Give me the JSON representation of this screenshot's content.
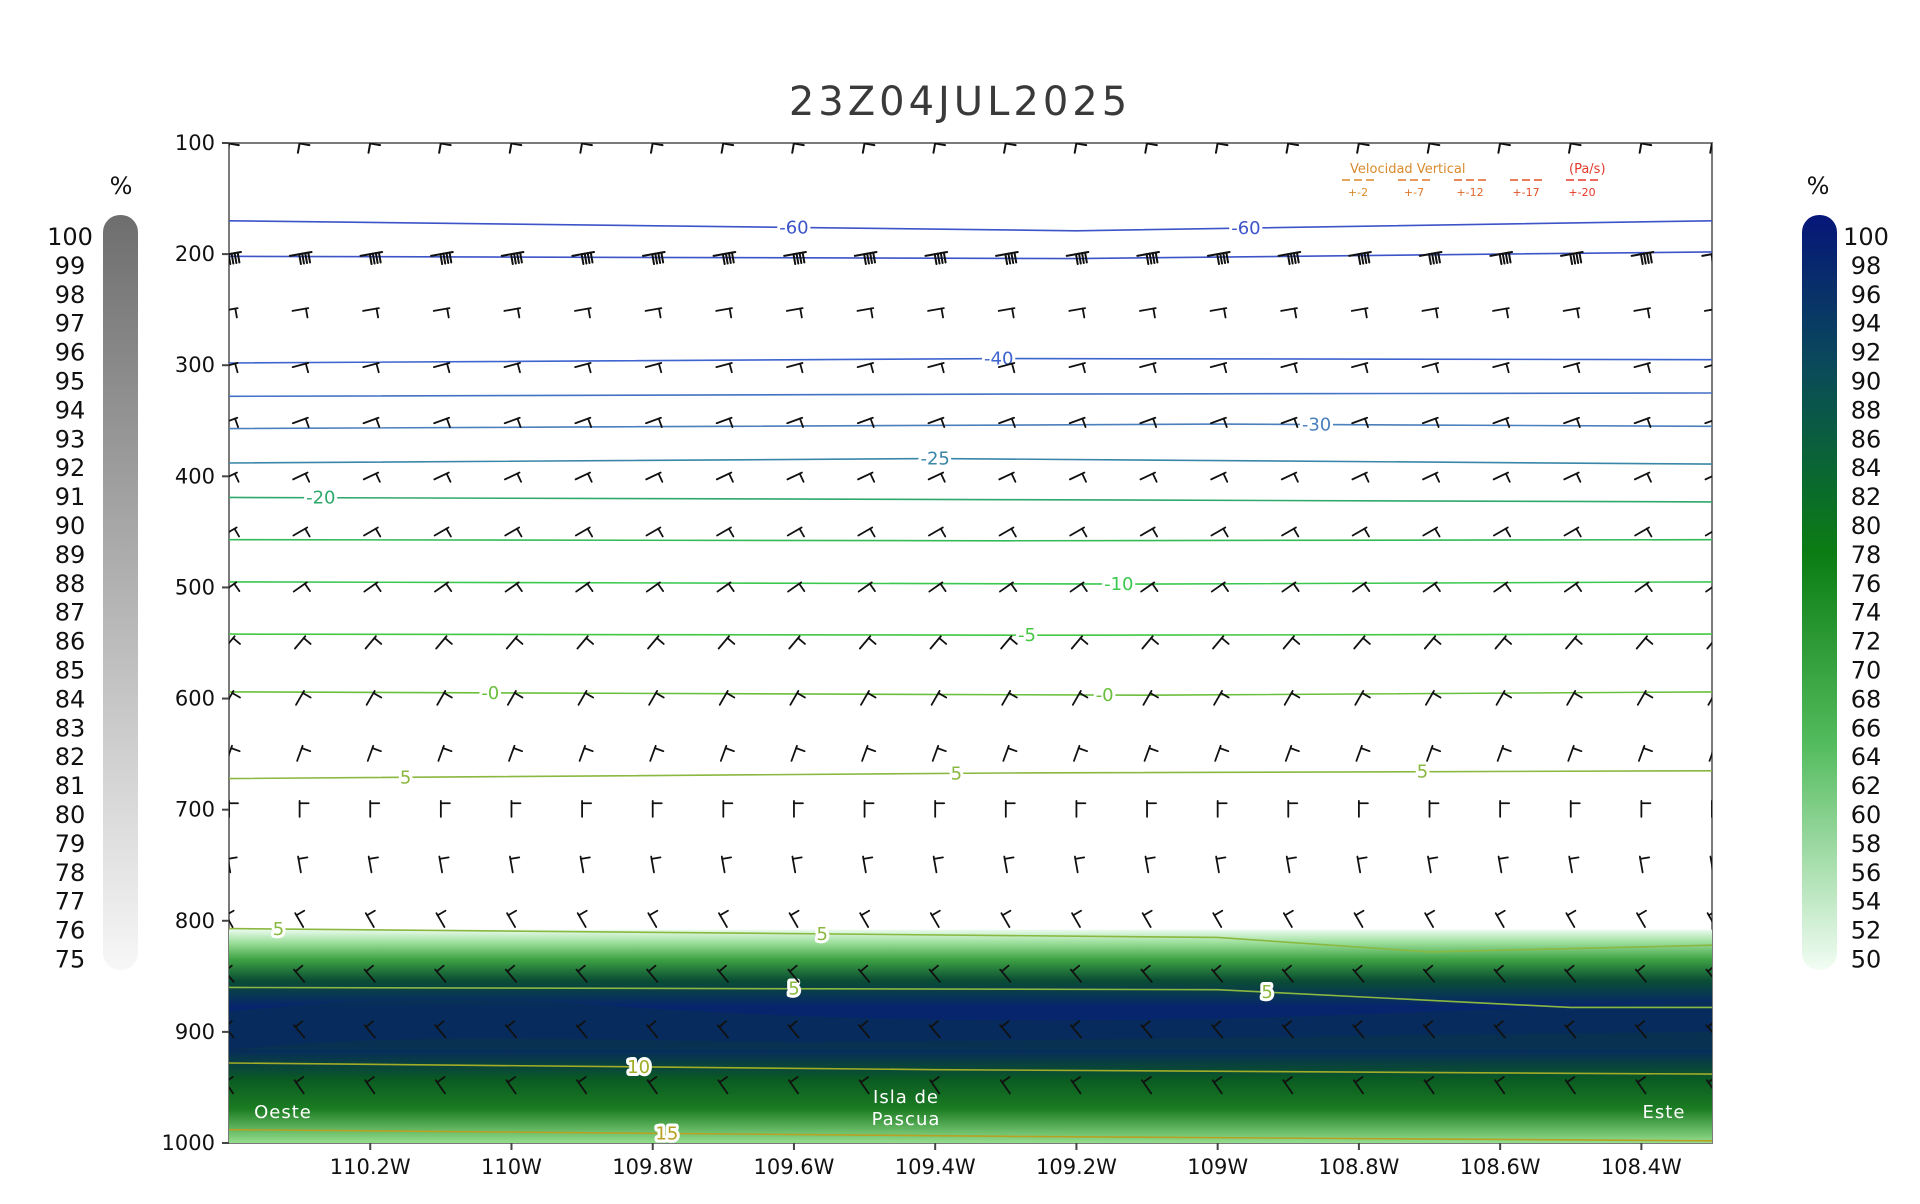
{
  "page": {
    "title": "23Z04JUL2025"
  },
  "chart_data": {
    "type": "heatmap",
    "title": "23Z04JUL2025",
    "xlabel": "",
    "ylabel": "",
    "x_ticks": [
      "110.2W",
      "110W",
      "109.8W",
      "109.6W",
      "109.4W",
      "109.2W",
      "109W",
      "108.8W",
      "108.6W",
      "108.4W"
    ],
    "x_tick_values": [
      -110.2,
      -110.0,
      -109.8,
      -109.6,
      -109.4,
      -109.2,
      -109.0,
      -108.8,
      -108.6,
      -108.4
    ],
    "x_range": [
      -110.4,
      -108.3
    ],
    "y_ticks": [
      "100",
      "200",
      "300",
      "400",
      "500",
      "600",
      "700",
      "800",
      "900",
      "1000"
    ],
    "y_tick_values": [
      100,
      200,
      300,
      400,
      500,
      600,
      700,
      800,
      900,
      1000
    ],
    "y_range": [
      100,
      1000
    ],
    "left_colorbar": {
      "unit": "%",
      "labels": [
        "100",
        "99",
        "98",
        "97",
        "96",
        "95",
        "94",
        "93",
        "92",
        "91",
        "90",
        "89",
        "88",
        "87",
        "86",
        "85",
        "84",
        "83",
        "82",
        "81",
        "80",
        "79",
        "78",
        "77",
        "76",
        "75"
      ]
    },
    "right_colorbar": {
      "unit": "%",
      "labels": [
        "100",
        "98",
        "96",
        "94",
        "92",
        "90",
        "88",
        "86",
        "84",
        "82",
        "80",
        "78",
        "76",
        "74",
        "72",
        "70",
        "68",
        "66",
        "64",
        "62",
        "60",
        "58",
        "56",
        "54",
        "52",
        "50"
      ],
      "colors": [
        "#091f87",
        "#0a2a73",
        "#093764",
        "#0b4656",
        "#08551c",
        "#0a6b10",
        "#12750f",
        "#1f8424",
        "#2d9634",
        "#3ca844",
        "#4ab453",
        "#59c062",
        "#69cb73",
        "#7ed586",
        "#94de9a",
        "#a8e6ae",
        "#b9edbe",
        "#c9f3cd",
        "#d9f7db",
        "#e5faea",
        "#eefcef"
      ]
    },
    "vertical_velocity_legend": {
      "title": "Velocidad Vertical",
      "unit": "(Pa/s)",
      "values": [
        "+-2",
        "+-7",
        "+-12",
        "+-17",
        "+-20"
      ],
      "colors": [
        "#d98a2c",
        "#e07829",
        "#e26426",
        "#e25024",
        "#e73527"
      ]
    },
    "location_labels": {
      "left": "Oeste",
      "center_line1": "Isla de",
      "center_line2": "Pascua",
      "right": "Este"
    },
    "series": [
      {
        "name": "",
        "values": [
          {
            "label": "-60",
            "points": [
              [
                -110.4,
                170
              ],
              [
                -109.2,
                179
              ],
              [
                -108.3,
                170
              ]
            ],
            "label_x": [
              -109.6,
              -108.96
            ],
            "color": "#3d54c9"
          },
          {
            "label": "",
            "points": [
              [
                -110.4,
                202
              ],
              [
                -109.2,
                204
              ],
              [
                -108.3,
                198
              ]
            ],
            "label_x": [],
            "color": "#3d54c9"
          },
          {
            "label": "-40",
            "points": [
              [
                -110.4,
                298
              ],
              [
                -109.3,
                294
              ],
              [
                -108.3,
                295
              ]
            ],
            "label_x": [
              -109.31
            ],
            "color": "#3d64cf"
          },
          {
            "label": "",
            "points": [
              [
                -110.4,
                328
              ],
              [
                -109.3,
                326
              ],
              [
                -108.3,
                325
              ]
            ],
            "label_x": [],
            "color": "#4472c4"
          },
          {
            "label": "-30",
            "points": [
              [
                -110.4,
                357
              ],
              [
                -109.0,
                353
              ],
              [
                -108.3,
                355
              ]
            ],
            "label_x": [
              -108.86
            ],
            "color": "#4b7fbd"
          },
          {
            "label": "-25",
            "points": [
              [
                -110.4,
                388
              ],
              [
                -109.4,
                384
              ],
              [
                -108.3,
                389
              ]
            ],
            "label_x": [
              -109.4
            ],
            "color": "#3a86a8"
          },
          {
            "label": "-20",
            "points": [
              [
                -110.4,
                419
              ],
              [
                -109.3,
                421
              ],
              [
                -108.3,
                423
              ]
            ],
            "label_x": [
              -110.27
            ],
            "color": "#2fa86c"
          },
          {
            "label": "",
            "points": [
              [
                -110.4,
                457
              ],
              [
                -109.3,
                458
              ],
              [
                -108.3,
                457
              ]
            ],
            "label_x": [],
            "color": "#34bb58"
          },
          {
            "label": "-10",
            "points": [
              [
                -110.4,
                495
              ],
              [
                -109.1,
                497
              ],
              [
                -108.3,
                495
              ]
            ],
            "label_x": [
              -109.14
            ],
            "color": "#3ac84f"
          },
          {
            "label": "-5",
            "points": [
              [
                -110.4,
                542
              ],
              [
                -109.2,
                543
              ],
              [
                -108.3,
                542
              ]
            ],
            "label_x": [
              -109.27
            ],
            "color": "#44c743"
          },
          {
            "label": "-0",
            "points": [
              [
                -110.4,
                594
              ],
              [
                -109.1,
                597
              ],
              [
                -108.3,
                594
              ]
            ],
            "label_x": [
              -110.03,
              -109.16
            ],
            "color": "#6abf3c"
          },
          {
            "label": "5",
            "points": [
              [
                -110.4,
                672
              ],
              [
                -109.3,
                667
              ],
              [
                -108.3,
                665
              ]
            ],
            "label_x": [
              -110.15,
              -109.37,
              -108.71
            ],
            "color": "#8ab840"
          },
          {
            "label": "5",
            "points": [
              [
                -110.4,
                807
              ],
              [
                -109.0,
                815
              ],
              [
                -108.7,
                828
              ],
              [
                -108.3,
                822
              ]
            ],
            "label_x": [
              -110.33,
              -109.56
            ],
            "color": "#8ab840"
          },
          {
            "label": "5",
            "points": [
              [
                -110.4,
                860
              ],
              [
                -109.0,
                862
              ],
              [
                -108.5,
                878
              ],
              [
                -108.3,
                878
              ]
            ],
            "label_x": [
              -109.6,
              -108.93
            ],
            "color": "#8ab840"
          },
          {
            "label": "10",
            "points": [
              [
                -110.4,
                928
              ],
              [
                -109.4,
                934
              ],
              [
                -108.3,
                938
              ]
            ],
            "label_x": [
              -109.82
            ],
            "color": "#a1ad27"
          },
          {
            "label": "15",
            "points": [
              [
                -110.4,
                988
              ],
              [
                -109.3,
                994
              ],
              [
                -108.3,
                998
              ]
            ],
            "label_x": [
              -109.78
            ],
            "color": "#b7a023"
          }
        ]
      }
    ],
    "moisture_band": {
      "top": 808,
      "bottom": 1000,
      "core_top": 838,
      "core_bottom": 905
    },
    "wind_barbs": {
      "x_values": [
        -110.4,
        -110.3,
        -110.2,
        -110.1,
        -110.0,
        -109.9,
        -109.8,
        -109.7,
        -109.6,
        -109.5,
        -109.4,
        -109.3,
        -109.2,
        -109.1,
        -109.0,
        -108.9,
        -108.8,
        -108.7,
        -108.6,
        -108.5,
        -108.4,
        -108.3
      ],
      "levels": [
        {
          "p": 100,
          "dir": 190,
          "type": "heavy"
        },
        {
          "p": 200,
          "dir": 260,
          "type": "heavy"
        },
        {
          "p": 250,
          "dir": 260,
          "type": "light"
        },
        {
          "p": 300,
          "dir": 255,
          "type": "light"
        },
        {
          "p": 350,
          "dir": 250,
          "type": "light"
        },
        {
          "p": 400,
          "dir": 245,
          "type": "light"
        },
        {
          "p": 450,
          "dir": 240,
          "type": "light"
        },
        {
          "p": 500,
          "dir": 235,
          "type": "light"
        },
        {
          "p": 550,
          "dir": 220,
          "type": "light"
        },
        {
          "p": 600,
          "dir": 210,
          "type": "light"
        },
        {
          "p": 650,
          "dir": 200,
          "type": "light"
        },
        {
          "p": 700,
          "dir": 180,
          "type": "light"
        },
        {
          "p": 750,
          "dir": 170,
          "type": "light"
        },
        {
          "p": 800,
          "dir": 150,
          "type": "light"
        },
        {
          "p": 850,
          "dir": 140,
          "type": "light"
        },
        {
          "p": 900,
          "dir": 140,
          "type": "light"
        },
        {
          "p": 950,
          "dir": 145,
          "type": "light"
        }
      ]
    },
    "grid": false,
    "legend": "top-right"
  }
}
